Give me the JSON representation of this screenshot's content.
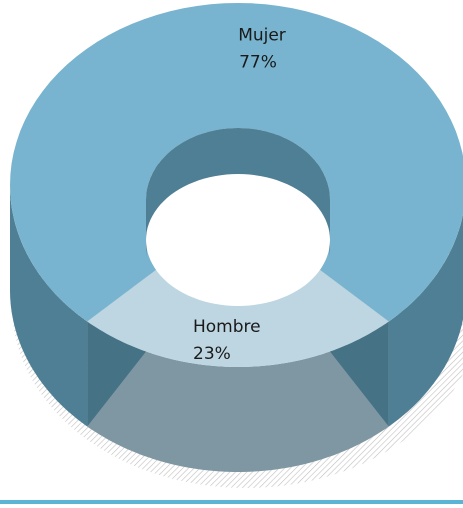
{
  "chart_data": {
    "type": "pie",
    "variant": "donut-3d",
    "title": "",
    "slices": [
      {
        "label": "Mujer",
        "value": 77,
        "value_label": "77%",
        "color": "#78B4CF",
        "side_color": "#4E7F94"
      },
      {
        "label": "Hombre",
        "value": 23,
        "value_label": "23%",
        "color": "#BDD6E1",
        "side_color": "#7E97A2"
      }
    ],
    "accent_bar_color": "#5AB4D6"
  }
}
